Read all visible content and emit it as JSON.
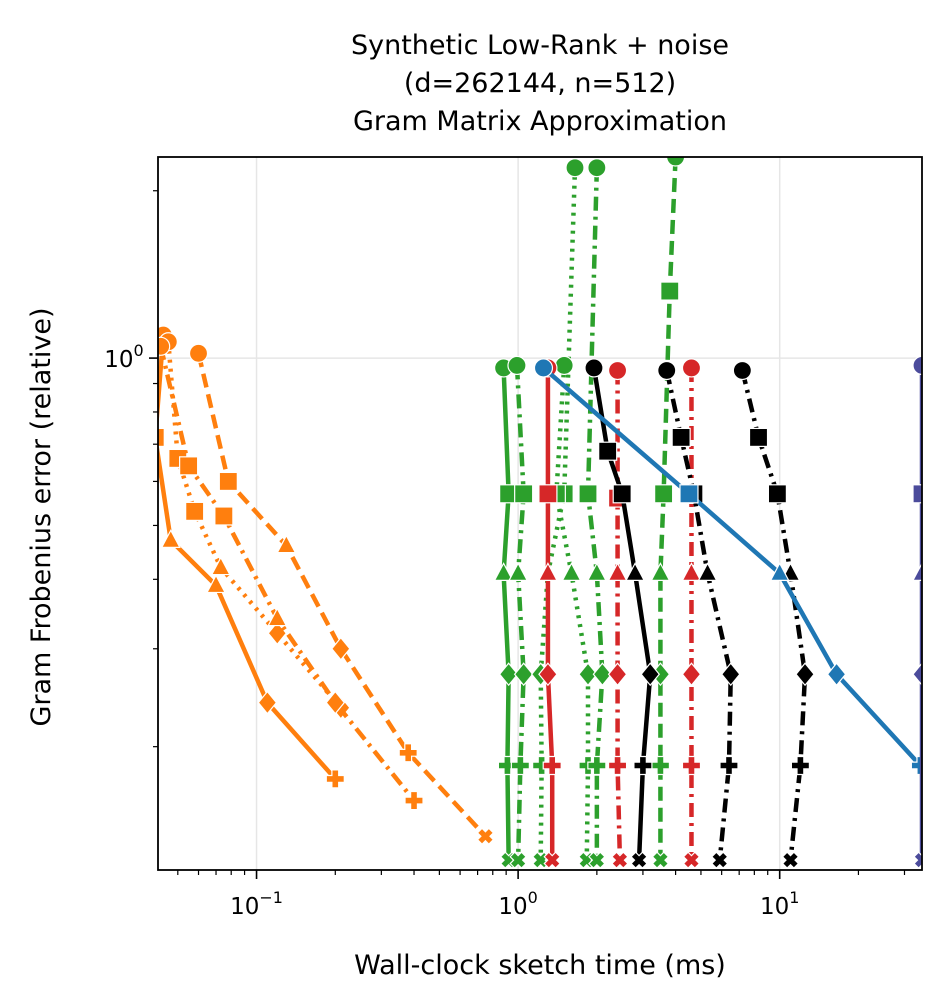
{
  "chart_data": {
    "type": "line",
    "title_lines": [
      "Synthetic Low-Rank + noise",
      "(d=262144, n=512)",
      "Gram Matrix Approximation"
    ],
    "xlabel": "Wall-clock sketch time (ms)",
    "ylabel": "Gram Frobenius error (relative)",
    "x_scale": "log",
    "y_scale": "log",
    "xlim": [
      0.042,
      35
    ],
    "ylim": [
      0.12,
      2.3
    ],
    "grid": true,
    "x_ticks": [
      {
        "value": 0.1,
        "base": "10",
        "exp": "−1"
      },
      {
        "value": 1,
        "base": "10",
        "exp": "0"
      },
      {
        "value": 10,
        "base": "10",
        "exp": "1"
      }
    ],
    "y_ticks": [
      {
        "value": 1,
        "base": "10",
        "exp": "0"
      }
    ],
    "colors": {
      "orange": "#ff7f0e",
      "green": "#2ca02c",
      "red": "#d62728",
      "black": "#000000",
      "blue": "#1f77b4",
      "purple": "#4b4b9b"
    },
    "y_levels": [
      0.96,
      0.57,
      0.41,
      0.27,
      0.185,
      0.125
    ],
    "markers": [
      "circle",
      "square",
      "triangle",
      "diamond",
      "plus",
      "x"
    ],
    "series": [
      {
        "color": "orange",
        "dash": "solid",
        "points": [
          [
            0.044,
            1.1
          ],
          [
            0.041,
            0.72
          ],
          [
            0.047,
            0.47
          ],
          [
            0.07,
            0.39
          ],
          [
            0.11,
            0.24
          ],
          [
            0.2,
            0.175
          ]
        ]
      },
      {
        "color": "orange",
        "dash": "dot",
        "points": [
          [
            0.046,
            1.07
          ],
          [
            0.05,
            0.66
          ],
          [
            0.058,
            0.53
          ],
          [
            0.073,
            0.42
          ],
          [
            0.12,
            0.32
          ],
          [
            0.21,
            0.235
          ]
        ]
      },
      {
        "color": "orange",
        "dash": "dashdot",
        "points": [
          [
            0.043,
            1.05
          ],
          [
            0.055,
            0.64
          ],
          [
            0.075,
            0.52
          ],
          [
            0.12,
            0.34
          ],
          [
            0.2,
            0.24
          ],
          [
            0.4,
            0.16
          ]
        ]
      },
      {
        "color": "orange",
        "dash": "dash",
        "points": [
          [
            0.06,
            1.02
          ],
          [
            0.078,
            0.6
          ],
          [
            0.13,
            0.46
          ],
          [
            0.21,
            0.3
          ],
          [
            0.38,
            0.195
          ],
          [
            0.75,
            0.138
          ]
        ]
      },
      {
        "color": "green",
        "dash": "solid",
        "points": [
          [
            0.88,
            0.96
          ],
          [
            0.92,
            0.57
          ],
          [
            0.88,
            0.41
          ],
          [
            0.92,
            0.27
          ],
          [
            0.91,
            0.185
          ],
          [
            0.92,
            0.125
          ]
        ]
      },
      {
        "color": "green",
        "dash": "dashdot",
        "points": [
          [
            0.99,
            0.97
          ],
          [
            1.05,
            0.57
          ],
          [
            1.0,
            0.41
          ],
          [
            1.05,
            0.27
          ],
          [
            1.02,
            0.185
          ],
          [
            1.0,
            0.125
          ]
        ]
      },
      {
        "color": "green",
        "dash": "dot",
        "points": [
          [
            1.65,
            2.2
          ],
          [
            1.5,
            0.57
          ],
          [
            1.3,
            0.41
          ],
          [
            1.22,
            0.27
          ],
          [
            1.23,
            0.185
          ],
          [
            1.22,
            0.125
          ]
        ]
      },
      {
        "color": "green",
        "dash": "dot",
        "points": [
          [
            1.5,
            0.97
          ],
          [
            1.4,
            0.57
          ],
          [
            1.6,
            0.41
          ],
          [
            1.85,
            0.27
          ],
          [
            1.85,
            0.185
          ],
          [
            1.83,
            0.125
          ]
        ]
      },
      {
        "color": "green",
        "dash": "dashdot",
        "points": [
          [
            2.0,
            2.2
          ],
          [
            1.85,
            0.57
          ],
          [
            2.0,
            0.41
          ],
          [
            2.1,
            0.27
          ],
          [
            2.0,
            0.185
          ],
          [
            2.0,
            0.125
          ]
        ]
      },
      {
        "color": "green",
        "dash": "dash",
        "points": [
          [
            4.0,
            2.3
          ],
          [
            3.8,
            1.32
          ],
          [
            3.6,
            0.57
          ],
          [
            3.5,
            0.41
          ],
          [
            3.5,
            0.27
          ],
          [
            3.5,
            0.185
          ],
          [
            3.5,
            0.125
          ]
        ]
      },
      {
        "color": "red",
        "dash": "solid",
        "points": [
          [
            1.3,
            0.96
          ],
          [
            1.3,
            0.57
          ],
          [
            1.3,
            0.41
          ],
          [
            1.3,
            0.27
          ],
          [
            1.35,
            0.185
          ],
          [
            1.35,
            0.125
          ]
        ]
      },
      {
        "color": "red",
        "dash": "dashdot",
        "points": [
          [
            2.4,
            0.95
          ],
          [
            2.4,
            0.56
          ],
          [
            2.4,
            0.41
          ],
          [
            2.4,
            0.27
          ],
          [
            2.4,
            0.185
          ],
          [
            2.45,
            0.125
          ]
        ]
      },
      {
        "color": "red",
        "dash": "dashdot",
        "points": [
          [
            4.6,
            0.96
          ],
          [
            4.6,
            0.57
          ],
          [
            4.6,
            0.41
          ],
          [
            4.6,
            0.27
          ],
          [
            4.6,
            0.185
          ],
          [
            4.6,
            0.125
          ]
        ]
      },
      {
        "color": "black",
        "dash": "solid",
        "points": [
          [
            1.95,
            0.96
          ],
          [
            2.2,
            0.68
          ],
          [
            2.5,
            0.57
          ],
          [
            2.8,
            0.41
          ],
          [
            3.2,
            0.27
          ],
          [
            3.0,
            0.185
          ],
          [
            2.9,
            0.125
          ]
        ]
      },
      {
        "color": "black",
        "dash": "dashdot",
        "points": [
          [
            3.7,
            0.95
          ],
          [
            4.2,
            0.72
          ],
          [
            4.7,
            0.57
          ],
          [
            5.3,
            0.41
          ],
          [
            6.5,
            0.27
          ],
          [
            6.4,
            0.185
          ],
          [
            5.9,
            0.125
          ]
        ]
      },
      {
        "color": "black",
        "dash": "dashdot",
        "points": [
          [
            7.2,
            0.95
          ],
          [
            8.3,
            0.72
          ],
          [
            9.8,
            0.57
          ],
          [
            11.0,
            0.41
          ],
          [
            12.5,
            0.27
          ],
          [
            12.0,
            0.185
          ],
          [
            11.0,
            0.125
          ]
        ]
      },
      {
        "color": "blue",
        "dash": "solid",
        "points": [
          [
            1.25,
            0.96
          ],
          [
            4.5,
            0.57
          ],
          [
            10.0,
            0.41
          ],
          [
            16.5,
            0.27
          ],
          [
            34.5,
            0.185
          ]
        ]
      },
      {
        "color": "purple",
        "dash": "solid",
        "points": [
          [
            35,
            0.97
          ],
          [
            35,
            0.57
          ],
          [
            35,
            0.41
          ],
          [
            35,
            0.27
          ],
          [
            35,
            0.125
          ]
        ]
      }
    ]
  }
}
